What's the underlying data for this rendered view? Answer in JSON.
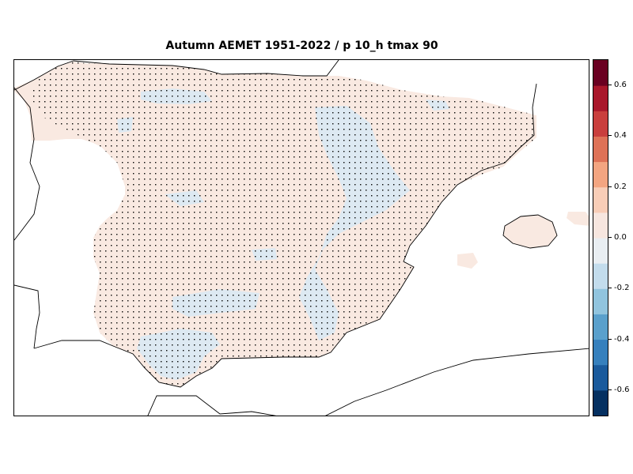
{
  "title": "Autumn AEMET 1951-2022 / p 10_h tmax 90",
  "colors": {
    "land_positive_weak": "#f9e9e1",
    "land_negative_weak": "#dde9f2",
    "coastline": "#000000",
    "stipple": "#000000",
    "background": "#ffffff"
  },
  "colorbar": {
    "min": -0.7,
    "max": 0.7,
    "levels": [
      {
        "lo": -0.7,
        "hi": -0.6,
        "color": "#053061"
      },
      {
        "lo": -0.6,
        "hi": -0.5,
        "color": "#1a5a9c"
      },
      {
        "lo": -0.5,
        "hi": -0.4,
        "color": "#3680bd"
      },
      {
        "lo": -0.4,
        "hi": -0.3,
        "color": "#5aa0cc"
      },
      {
        "lo": -0.3,
        "hi": -0.2,
        "color": "#91c4de"
      },
      {
        "lo": -0.2,
        "hi": -0.1,
        "color": "#c3dcec"
      },
      {
        "lo": -0.1,
        "hi": 0.0,
        "color": "#e9eef2"
      },
      {
        "lo": 0.0,
        "hi": 0.1,
        "color": "#f7e6df"
      },
      {
        "lo": 0.1,
        "hi": 0.2,
        "color": "#f8cdb7"
      },
      {
        "lo": 0.2,
        "hi": 0.3,
        "color": "#f3a581"
      },
      {
        "lo": 0.3,
        "hi": 0.4,
        "color": "#de7257"
      },
      {
        "lo": 0.4,
        "hi": 0.5,
        "color": "#c93f3d"
      },
      {
        "lo": 0.5,
        "hi": 0.6,
        "color": "#a9172b"
      },
      {
        "lo": 0.6,
        "hi": 0.7,
        "color": "#6a0021"
      }
    ],
    "ticks": [
      {
        "value": 0.6,
        "label": "0.6"
      },
      {
        "value": 0.4,
        "label": "0.4"
      },
      {
        "value": 0.2,
        "label": "0.2"
      },
      {
        "value": 0.0,
        "label": "0.0"
      },
      {
        "value": -0.2,
        "label": "-0.2"
      },
      {
        "value": -0.4,
        "label": "-0.4"
      },
      {
        "value": -0.6,
        "label": "-0.6"
      }
    ]
  }
}
